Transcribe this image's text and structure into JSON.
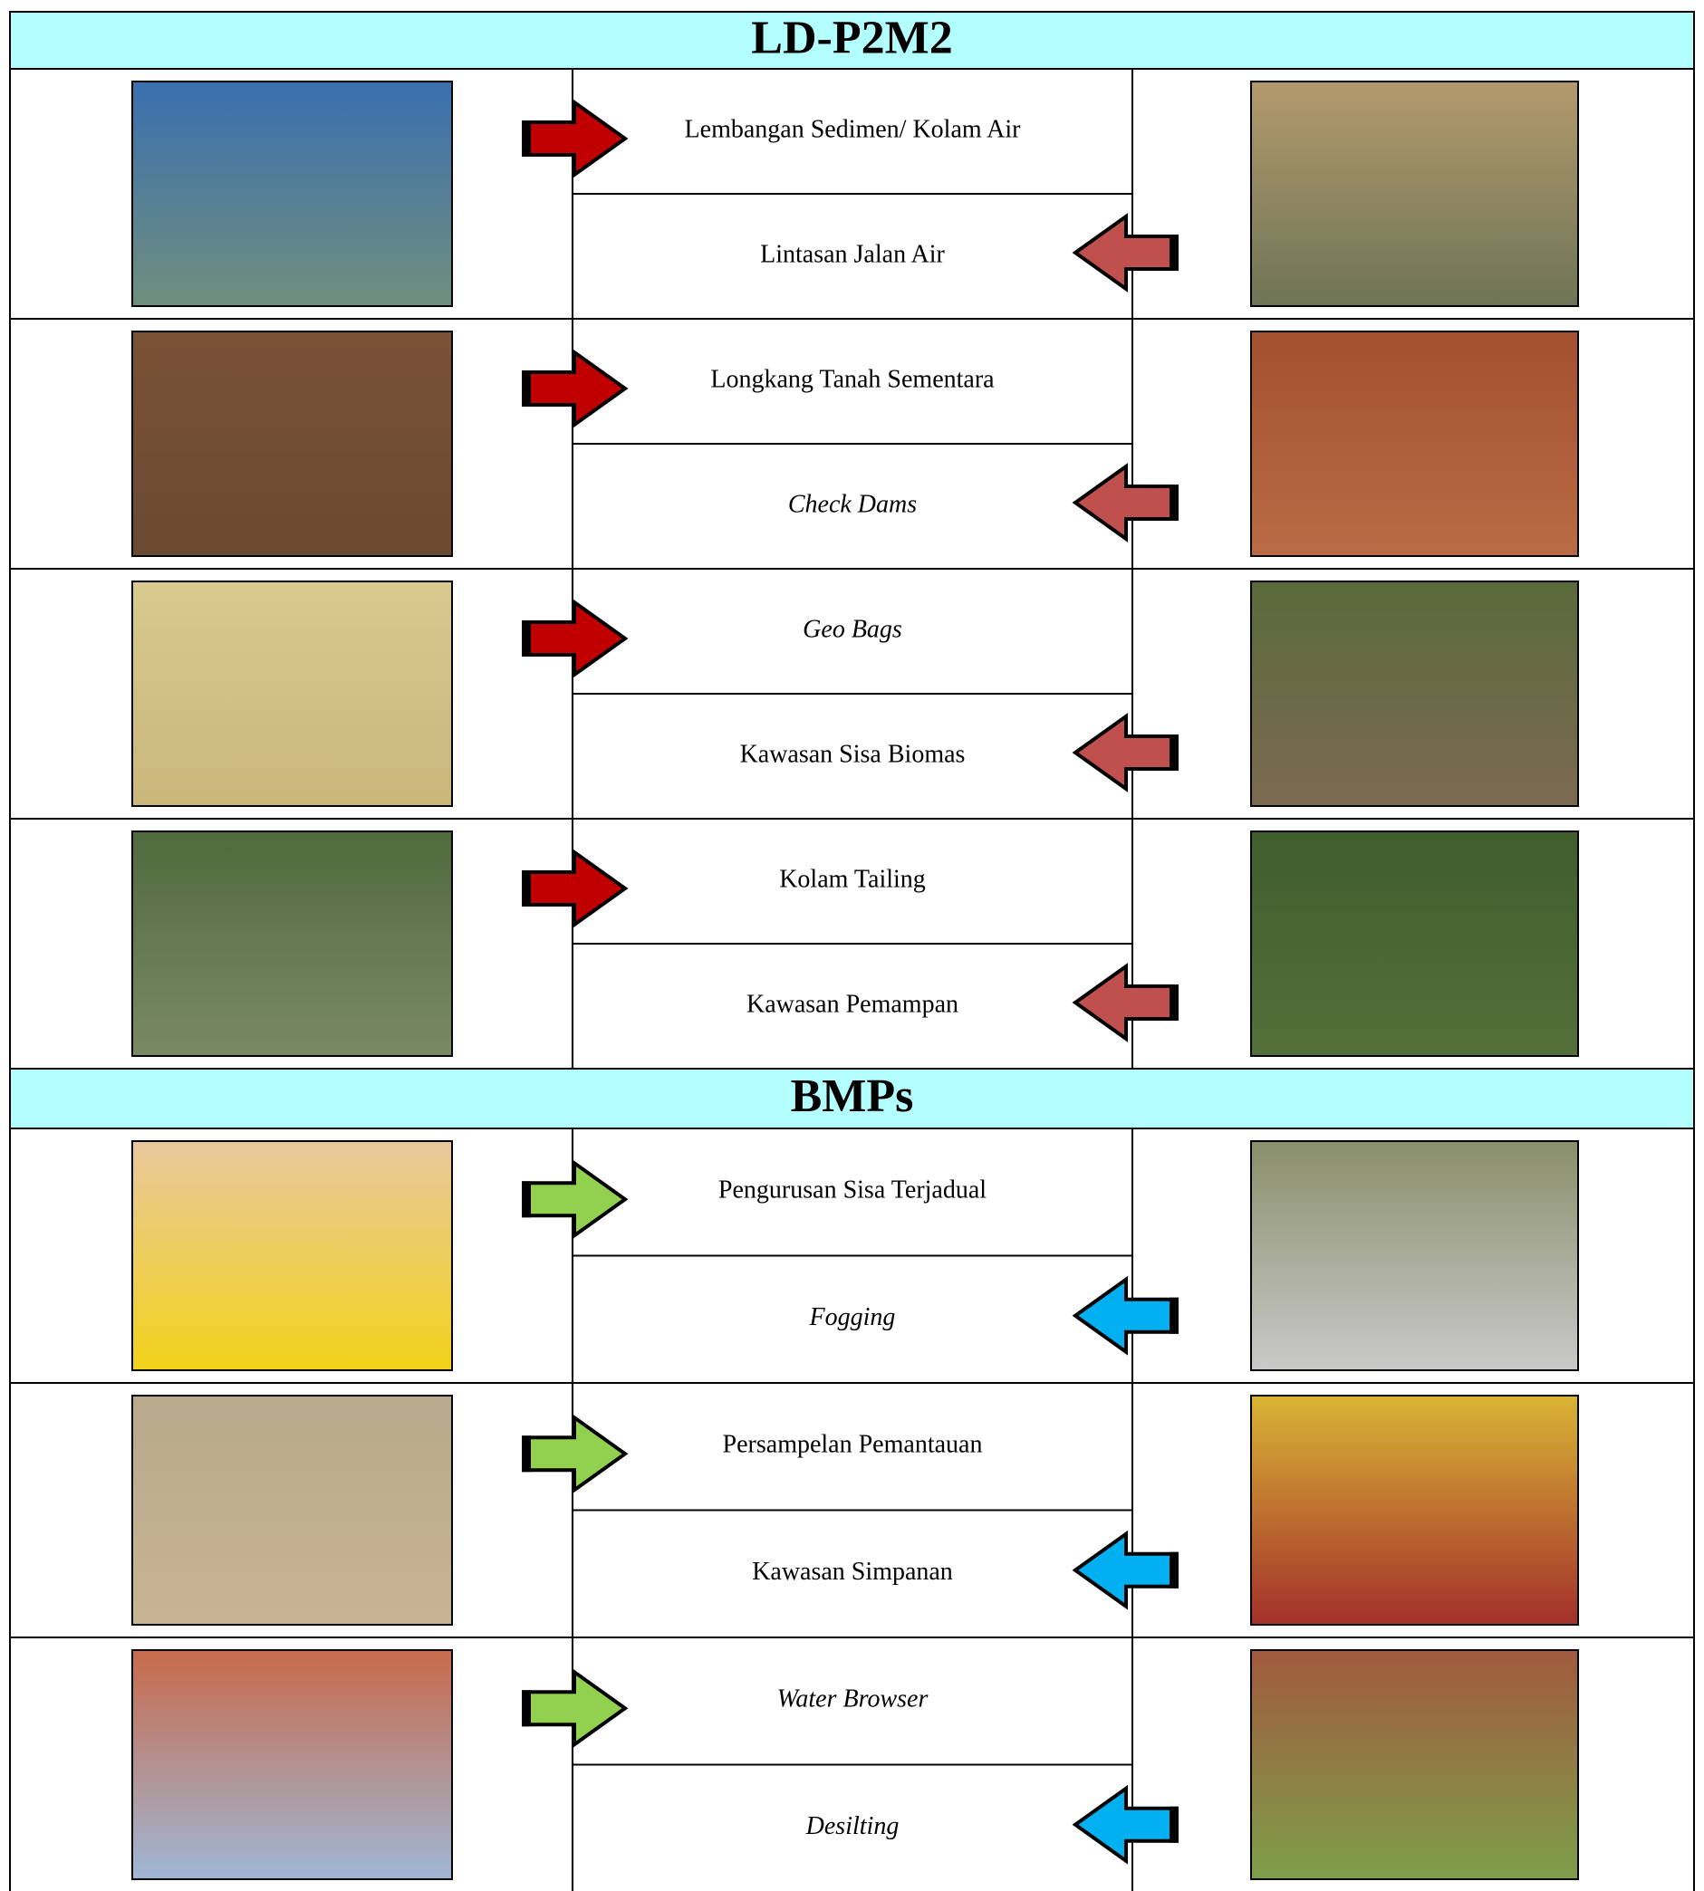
{
  "sections": [
    {
      "title": "LD-P2M2",
      "rows": [
        {
          "items": [
            {
              "label": "Lembangan Sedimen/ Kolam Air"
            },
            {
              "label": "Lintasan Jalan Air"
            }
          ]
        },
        {
          "items": [
            {
              "label": "Longkang Tanah Sementara"
            },
            {
              "label": "Check Dams",
              "italic": true
            }
          ]
        },
        {
          "items": [
            {
              "label": "Geo Bags",
              "italic": true
            },
            {
              "label": "Kawasan Sisa Biomas"
            }
          ]
        },
        {
          "items": [
            {
              "label": "Kolam Tailing"
            },
            {
              "label": "Kawasan Pemampan"
            }
          ]
        }
      ]
    },
    {
      "title": "BMPs",
      "rows": [
        {
          "items": [
            {
              "label": "Pengurusan Sisa Terjadual"
            },
            {
              "label": "Fogging",
              "italic": true
            }
          ]
        },
        {
          "items": [
            {
              "label": "Persampelan Pemantauan"
            },
            {
              "label": "Kawasan Simpanan"
            }
          ]
        },
        {
          "items": [
            {
              "label": "Water Browser",
              "italic": true
            },
            {
              "label": "Desilting",
              "italic": true
            }
          ]
        }
      ]
    }
  ]
}
